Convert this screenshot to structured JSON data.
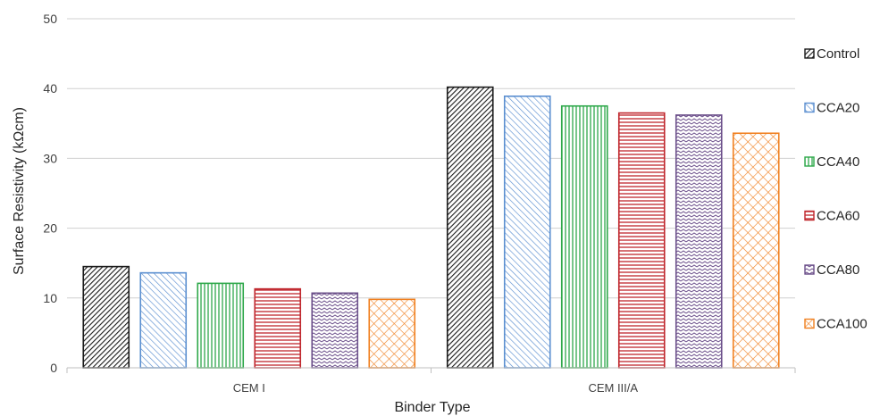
{
  "chart_data": {
    "type": "bar",
    "title": "",
    "xlabel": "Binder Type",
    "ylabel": "Surface Resistivity (kΩcm)",
    "ylim": [
      0,
      50
    ],
    "yticks": [
      0,
      10,
      20,
      30,
      40,
      50
    ],
    "grid": true,
    "legend_position": "right",
    "categories": [
      "CEM I",
      "CEM III/A"
    ],
    "series": [
      {
        "name": "Control",
        "values": [
          14.5,
          40.2
        ],
        "color": "#1a1a1a",
        "pattern": "diag-dense"
      },
      {
        "name": "CCA20",
        "values": [
          13.6,
          38.9
        ],
        "color": "#5b8fd0",
        "pattern": "diag-wide"
      },
      {
        "name": "CCA40",
        "values": [
          12.1,
          37.5
        ],
        "color": "#2ea84a",
        "pattern": "vertical"
      },
      {
        "name": "CCA60",
        "values": [
          11.3,
          36.5
        ],
        "color": "#c0272d",
        "pattern": "horizontal"
      },
      {
        "name": "CCA80",
        "values": [
          10.7,
          36.2
        ],
        "color": "#6b4f8a",
        "pattern": "zigzag"
      },
      {
        "name": "CCA100",
        "values": [
          9.8,
          33.6
        ],
        "color": "#f08020",
        "pattern": "crosshatch"
      }
    ]
  }
}
